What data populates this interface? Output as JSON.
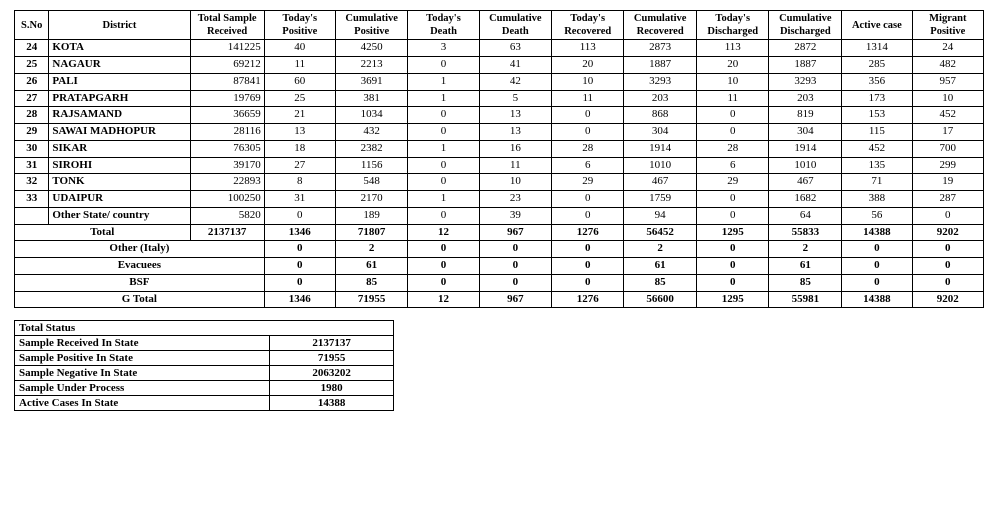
{
  "main_table": {
    "headers": [
      "S.No",
      "District",
      "Total Sample Received",
      "Today's Positive",
      "Cumulative Positive",
      "Today's Death",
      "Cumulative Death",
      "Today's Recovered",
      "Cumulative Recovered",
      "Today's Discharged",
      "Cumulative Discharged",
      "Active  case",
      "Migrant Positive"
    ],
    "rows": [
      {
        "sno": "24",
        "district": "KOTA",
        "tsr": "141225",
        "tp": "40",
        "cp": "4250",
        "td": "3",
        "cd": "63",
        "tr": "113",
        "cr": "2873",
        "tdis": "113",
        "cdis": "2872",
        "ac": "1314",
        "mp": "24"
      },
      {
        "sno": "25",
        "district": "NAGAUR",
        "tsr": "69212",
        "tp": "11",
        "cp": "2213",
        "td": "0",
        "cd": "41",
        "tr": "20",
        "cr": "1887",
        "tdis": "20",
        "cdis": "1887",
        "ac": "285",
        "mp": "482"
      },
      {
        "sno": "26",
        "district": "PALI",
        "tsr": "87841",
        "tp": "60",
        "cp": "3691",
        "td": "1",
        "cd": "42",
        "tr": "10",
        "cr": "3293",
        "tdis": "10",
        "cdis": "3293",
        "ac": "356",
        "mp": "957"
      },
      {
        "sno": "27",
        "district": "PRATAPGARH",
        "tsr": "19769",
        "tp": "25",
        "cp": "381",
        "td": "1",
        "cd": "5",
        "tr": "11",
        "cr": "203",
        "tdis": "11",
        "cdis": "203",
        "ac": "173",
        "mp": "10"
      },
      {
        "sno": "28",
        "district": "RAJSAMAND",
        "tsr": "36659",
        "tp": "21",
        "cp": "1034",
        "td": "0",
        "cd": "13",
        "tr": "0",
        "cr": "868",
        "tdis": "0",
        "cdis": "819",
        "ac": "153",
        "mp": "452"
      },
      {
        "sno": "29",
        "district": "SAWAI MADHOPUR",
        "tsr": "28116",
        "tp": "13",
        "cp": "432",
        "td": "0",
        "cd": "13",
        "tr": "0",
        "cr": "304",
        "tdis": "0",
        "cdis": "304",
        "ac": "115",
        "mp": "17"
      },
      {
        "sno": "30",
        "district": "SIKAR",
        "tsr": "76305",
        "tp": "18",
        "cp": "2382",
        "td": "1",
        "cd": "16",
        "tr": "28",
        "cr": "1914",
        "tdis": "28",
        "cdis": "1914",
        "ac": "452",
        "mp": "700"
      },
      {
        "sno": "31",
        "district": "SIROHI",
        "tsr": "39170",
        "tp": "27",
        "cp": "1156",
        "td": "0",
        "cd": "11",
        "tr": "6",
        "cr": "1010",
        "tdis": "6",
        "cdis": "1010",
        "ac": "135",
        "mp": "299"
      },
      {
        "sno": "32",
        "district": "TONK",
        "tsr": "22893",
        "tp": "8",
        "cp": "548",
        "td": "0",
        "cd": "10",
        "tr": "29",
        "cr": "467",
        "tdis": "29",
        "cdis": "467",
        "ac": "71",
        "mp": "19"
      },
      {
        "sno": "33",
        "district": "UDAIPUR",
        "tsr": "100250",
        "tp": "31",
        "cp": "2170",
        "td": "1",
        "cd": "23",
        "tr": "0",
        "cr": "1759",
        "tdis": "0",
        "cdis": "1682",
        "ac": "388",
        "mp": "287"
      },
      {
        "sno": "",
        "district": "Other State/ country",
        "tsr": "5820",
        "tp": "0",
        "cp": "189",
        "td": "0",
        "cd": "39",
        "tr": "0",
        "cr": "94",
        "tdis": "0",
        "cdis": "64",
        "ac": "56",
        "mp": "0"
      }
    ],
    "summary": [
      {
        "label": "Total",
        "tsr": "2137137",
        "tp": "1346",
        "cp": "71807",
        "td": "12",
        "cd": "967",
        "tr": "1276",
        "cr": "56452",
        "tdis": "1295",
        "cdis": "55833",
        "ac": "14388",
        "mp": "9202"
      },
      {
        "label": "Other (Italy)",
        "tsr": "",
        "tp": "0",
        "cp": "2",
        "td": "0",
        "cd": "0",
        "tr": "0",
        "cr": "2",
        "tdis": "0",
        "cdis": "2",
        "ac": "0",
        "mp": "0"
      },
      {
        "label": "Evacuees",
        "tsr": "",
        "tp": "0",
        "cp": "61",
        "td": "0",
        "cd": "0",
        "tr": "0",
        "cr": "61",
        "tdis": "0",
        "cdis": "61",
        "ac": "0",
        "mp": "0"
      },
      {
        "label": "BSF",
        "tsr": "",
        "tp": "0",
        "cp": "85",
        "td": "0",
        "cd": "0",
        "tr": "0",
        "cr": "85",
        "tdis": "0",
        "cdis": "85",
        "ac": "0",
        "mp": "0"
      },
      {
        "label": "G Total",
        "tsr": "",
        "tp": "1346",
        "cp": "71955",
        "td": "12",
        "cd": "967",
        "tr": "1276",
        "cr": "56600",
        "tdis": "1295",
        "cdis": "55981",
        "ac": "14388",
        "mp": "9202"
      }
    ]
  },
  "status_table": {
    "title": "Total Status",
    "rows": [
      {
        "label": "Sample Received In State",
        "value": "2137137"
      },
      {
        "label": "Sample Positive In State",
        "value": "71955"
      },
      {
        "label": "Sample Negative In State",
        "value": "2063202"
      },
      {
        "label": "Sample Under Process",
        "value": "1980"
      },
      {
        "label": "Active Cases In State",
        "value": "14388"
      }
    ]
  }
}
